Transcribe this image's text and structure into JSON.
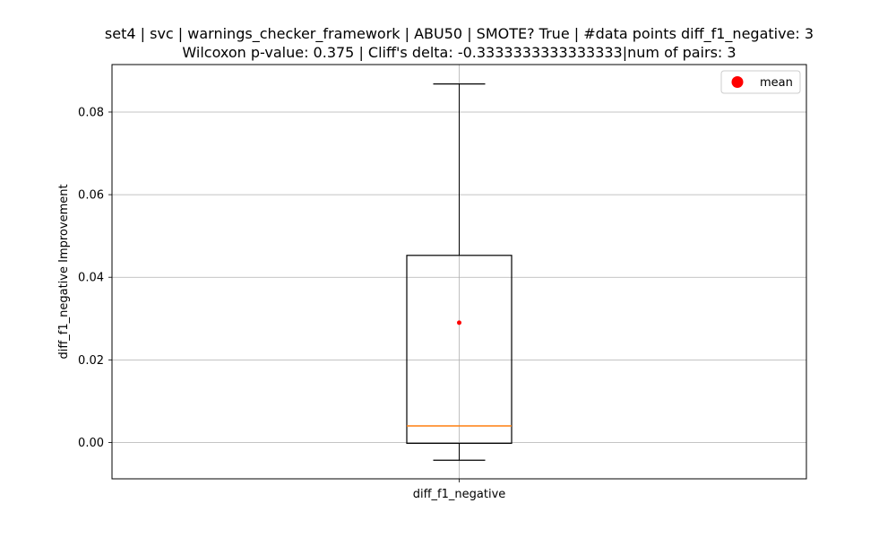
{
  "chart_data": {
    "type": "box",
    "title_line1": "set4 | svc | warnings_checker_framework | ABU50 | SMOTE? True | #data points diff_f1_negative: 3",
    "title_line2": "Wilcoxon p-value: 0.375 | Cliff's delta: -0.3333333333333333|num of pairs: 3",
    "xlabel": "",
    "ylabel": "diff_f1_negative Improvement",
    "categories": [
      "diff_f1_negative"
    ],
    "ylim": [
      -0.0088,
      0.0915
    ],
    "yticks": [
      0.0,
      0.02,
      0.04,
      0.06,
      0.08
    ],
    "ytick_labels": [
      "0.00",
      "0.02",
      "0.04",
      "0.06",
      "0.08"
    ],
    "grid": true,
    "box": {
      "whisker_low": -0.0043,
      "q1": -0.0002,
      "median": 0.004,
      "q3": 0.0453,
      "whisker_high": 0.0868,
      "mean": 0.029
    },
    "legend": {
      "position": "top-right",
      "label": "mean"
    },
    "colors": {
      "box": "#000000",
      "median": "#ff7f0e",
      "mean": "#ff0000",
      "grid": "#b0b0b0"
    }
  }
}
